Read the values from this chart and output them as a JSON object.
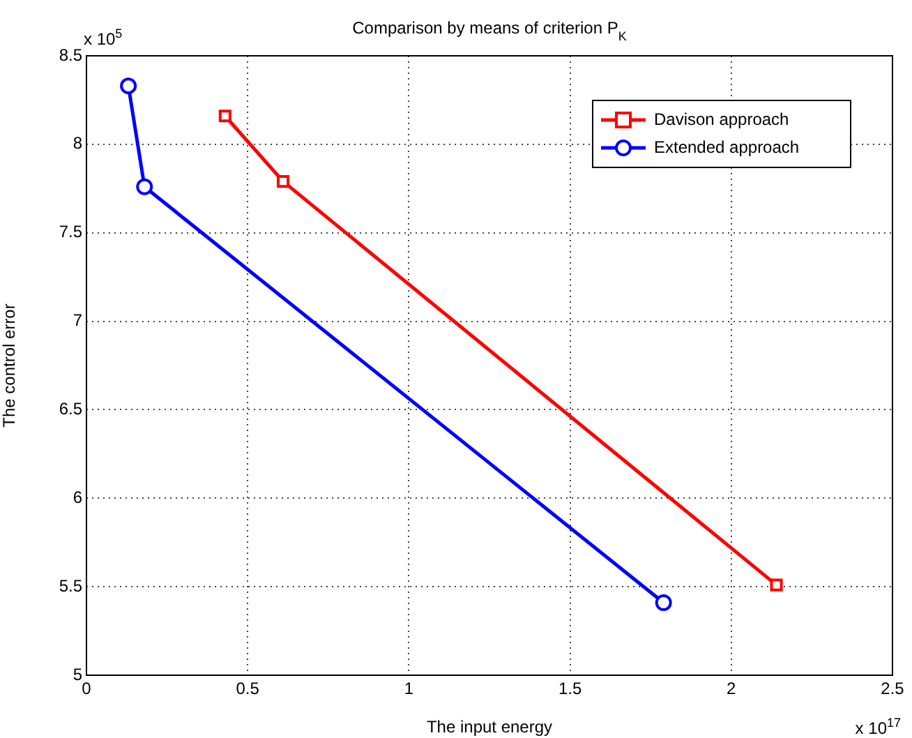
{
  "chart_data": {
    "type": "line",
    "title": "Comparison by means of criterion P$_{K}$",
    "xlabel": "The input energy",
    "ylabel": "The control error",
    "annotations": [
      "x 10$^{5}$",
      "x 10$^{17}$"
    ],
    "xlim": [
      0,
      2.5
    ],
    "xticks": [
      0,
      0.5,
      1,
      1.5,
      2,
      2.5
    ],
    "ylim": [
      5,
      8.5
    ],
    "yticks": [
      5,
      5.5,
      6,
      6.5,
      7,
      7.5,
      8,
      8.5
    ],
    "grid": true,
    "legend": "top right",
    "line_style": "solid",
    "series": [
      {
        "name": "Davison approach",
        "color": "#ff0000",
        "marker": "square",
        "x": [
          0.43,
          0.61,
          2.14
        ],
        "values": [
          8.16,
          7.79,
          5.51
        ]
      },
      {
        "name": "Extended approach",
        "color": "#0000ff",
        "marker": "circle",
        "x": [
          0.13,
          0.18,
          1.79
        ],
        "values": [
          8.33,
          7.76,
          5.41
        ]
      }
    ]
  }
}
